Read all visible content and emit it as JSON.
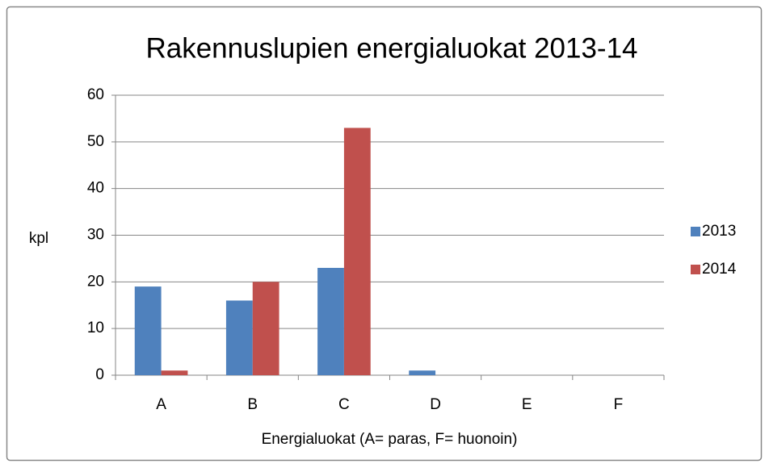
{
  "chart_data": {
    "type": "bar",
    "title": "Rakennuslupien energialuokat 2013-14",
    "y_label": "kpl",
    "x_label": "Energialuokat (A= paras, F= huonoin)",
    "categories": [
      "A",
      "B",
      "C",
      "D",
      "E",
      "F"
    ],
    "series": [
      {
        "name": "2013",
        "color": "#4f81bd",
        "values": [
          19,
          16,
          23,
          1,
          0,
          0
        ]
      },
      {
        "name": "2014",
        "color": "#c0504d",
        "values": [
          1,
          20,
          53,
          0,
          0,
          0
        ]
      }
    ],
    "ylim": [
      0,
      60
    ],
    "yticks": [
      0,
      10,
      20,
      30,
      40,
      50,
      60
    ],
    "grid": true,
    "legend": "right"
  }
}
